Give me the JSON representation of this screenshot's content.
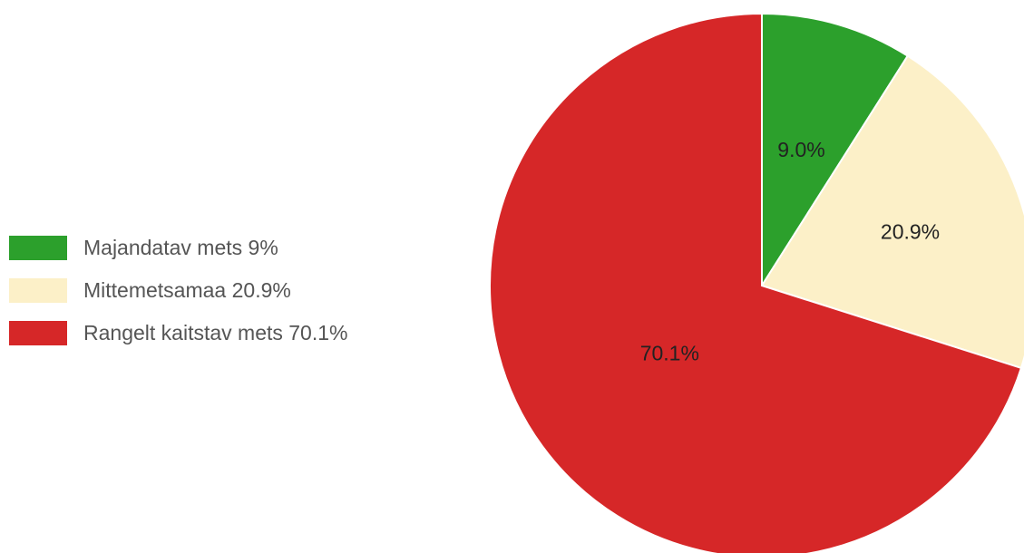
{
  "chart_data": {
    "type": "pie",
    "title": "",
    "slices": [
      {
        "label": "Majandatav mets",
        "value": 9.0,
        "display_label": "9.0%",
        "legend_text": "Majandatav mets 9%",
        "color": "#2ca02c"
      },
      {
        "label": "Mittemetsamaa",
        "value": 20.9,
        "display_label": "20.9%",
        "legend_text": "Mittemetsamaa 20.9%",
        "color": "#fcf0c8"
      },
      {
        "label": "Rangelt kaitstav mets",
        "value": 70.1,
        "display_label": "70.1%",
        "legend_text": "Rangelt kaitstav mets 70.1%",
        "color": "#d62728"
      }
    ],
    "start_angle": "12 o'clock",
    "direction": "clockwise",
    "legend_placement": "left"
  }
}
